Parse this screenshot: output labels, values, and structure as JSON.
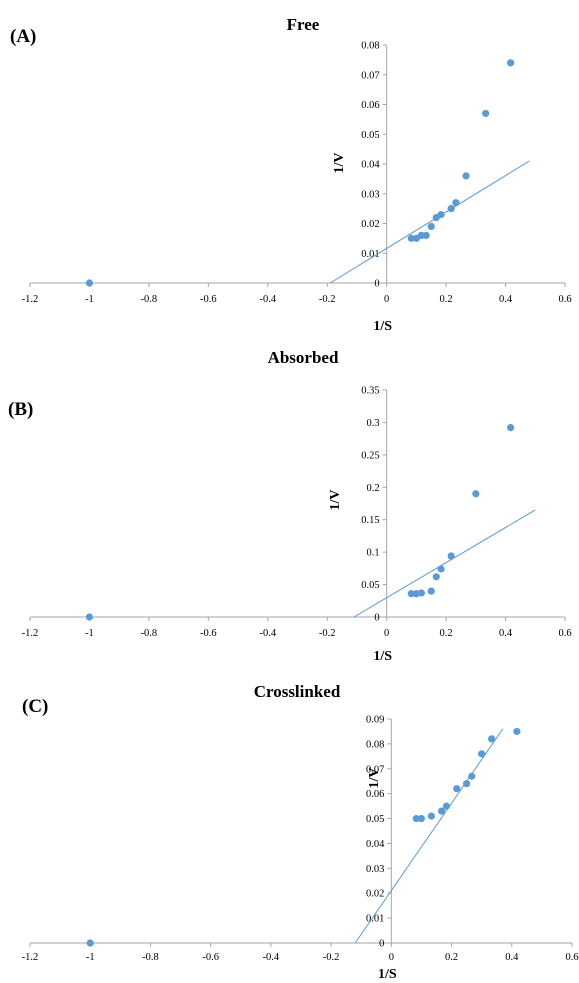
{
  "chart_data": [
    {
      "type": "scatter",
      "panel_label": "(A)",
      "title": "Free",
      "xlabel": "1/S",
      "ylabel": "1/V",
      "xlim": [
        -1.2,
        0.6
      ],
      "ylim": [
        0,
        0.08
      ],
      "x_ticks": [
        "-1.2",
        "-1",
        "-0.8",
        "-0.6",
        "-0.4",
        "-0.2",
        "0",
        "0.2",
        "0.4",
        "0.6"
      ],
      "y_ticks": [
        "0",
        "0.01",
        "0.02",
        "0.03",
        "0.04",
        "0.05",
        "0.06",
        "0.07",
        "0.08"
      ],
      "points": [
        [
          -1.0,
          0.0
        ],
        [
          0.083,
          0.015
        ],
        [
          0.1,
          0.015
        ],
        [
          0.117,
          0.016
        ],
        [
          0.133,
          0.016
        ],
        [
          0.15,
          0.019
        ],
        [
          0.167,
          0.022
        ],
        [
          0.183,
          0.023
        ],
        [
          0.217,
          0.025
        ],
        [
          0.233,
          0.027
        ],
        [
          0.267,
          0.036
        ],
        [
          0.333,
          0.057
        ],
        [
          0.417,
          0.074
        ]
      ],
      "trendline": [
        [
          -0.19,
          0.0
        ],
        [
          0.48,
          0.041
        ]
      ],
      "colors": {
        "marker": "#5b9bd5",
        "axis": "#a6a6a6"
      },
      "grid": false
    },
    {
      "type": "scatter",
      "panel_label": "(B)",
      "title": "Absorbed",
      "xlabel": "1/S",
      "ylabel": "1/V",
      "xlim": [
        -1.2,
        0.6
      ],
      "ylim": [
        0,
        0.35
      ],
      "x_ticks": [
        "-1.2",
        "-1",
        "-0.8",
        "-0.6",
        "-0.4",
        "-0.2",
        "0",
        "0.2",
        "0.4",
        "0.6"
      ],
      "y_ticks": [
        "0",
        "0.05",
        "0.1",
        "0.15",
        "0.2",
        "0.25",
        "0.3",
        "0.35"
      ],
      "points": [
        [
          -1.0,
          0.0
        ],
        [
          0.083,
          0.036
        ],
        [
          0.1,
          0.036
        ],
        [
          0.117,
          0.037
        ],
        [
          0.15,
          0.04
        ],
        [
          0.167,
          0.062
        ],
        [
          0.183,
          0.074
        ],
        [
          0.217,
          0.094
        ],
        [
          0.3,
          0.19
        ],
        [
          0.417,
          0.292
        ]
      ],
      "trendline": [
        [
          -0.11,
          0.0
        ],
        [
          0.5,
          0.165
        ]
      ],
      "colors": {
        "marker": "#5b9bd5",
        "axis": "#a6a6a6"
      },
      "grid": false
    },
    {
      "type": "scatter",
      "panel_label": "(C)",
      "title": "Crosslinked",
      "xlabel": "1/S",
      "ylabel": "1/V",
      "xlim": [
        -1.2,
        0.6
      ],
      "ylim": [
        0,
        0.09
      ],
      "x_ticks": [
        "-1.2",
        "-1",
        "-0.8",
        "-0.6",
        "-0.4",
        "-0.2",
        "0",
        "0.2",
        "0.4",
        "0.6"
      ],
      "y_ticks": [
        "0",
        "0.01",
        "0.02",
        "0.03",
        "0.04",
        "0.05",
        "0.06",
        "0.07",
        "0.08",
        "0.09"
      ],
      "points": [
        [
          -1.0,
          0.0
        ],
        [
          0.083,
          0.05
        ],
        [
          0.1,
          0.05
        ],
        [
          0.133,
          0.051
        ],
        [
          0.167,
          0.053
        ],
        [
          0.183,
          0.055
        ],
        [
          0.217,
          0.062
        ],
        [
          0.25,
          0.064
        ],
        [
          0.267,
          0.067
        ],
        [
          0.3,
          0.076
        ],
        [
          0.333,
          0.082
        ],
        [
          0.417,
          0.085
        ]
      ],
      "trendline": [
        [
          -0.12,
          0.0
        ],
        [
          0.37,
          0.086
        ]
      ],
      "colors": {
        "marker": "#5b9bd5",
        "axis": "#a6a6a6"
      },
      "grid": false
    }
  ]
}
